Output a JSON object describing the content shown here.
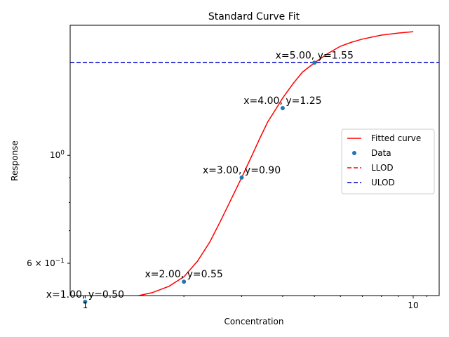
{
  "chart_data": {
    "type": "line",
    "title": "Standard Curve Fit",
    "xlabel": "Concentration",
    "ylabel": "Response",
    "xscale": "log",
    "yscale": "log",
    "xlim": [
      0.9,
      12
    ],
    "ylim": [
      0.515,
      1.85
    ],
    "x_ticks": [
      {
        "value": 1,
        "label": "1"
      },
      {
        "value": 10,
        "label": "10"
      }
    ],
    "y_ticks": [
      {
        "value": 1.0,
        "base": "10",
        "exp": "0"
      },
      {
        "value": 0.6,
        "base": "6 × 10",
        "exp": "−1"
      }
    ],
    "series": [
      {
        "name": "Fitted curve",
        "kind": "line",
        "color": "#ff0000",
        "x": [
          1.0,
          1.2,
          1.4,
          1.6,
          1.8,
          2.0,
          2.2,
          2.4,
          2.6,
          2.8,
          3.0,
          3.2,
          3.4,
          3.6,
          3.8,
          4.0,
          4.3,
          4.6,
          5.0,
          5.5,
          6.0,
          6.5,
          7.0,
          8.0,
          9.0,
          10.0
        ],
        "y": [
          0.501,
          0.505,
          0.512,
          0.522,
          0.538,
          0.563,
          0.606,
          0.664,
          0.738,
          0.818,
          0.9,
          0.988,
          1.08,
          1.17,
          1.24,
          1.311,
          1.403,
          1.483,
          1.549,
          1.62,
          1.675,
          1.708,
          1.733,
          1.766,
          1.783,
          1.795
        ]
      },
      {
        "name": "Data",
        "kind": "scatter",
        "color": "#1f77b4",
        "x": [
          1,
          2,
          3,
          4,
          5
        ],
        "y": [
          0.5,
          0.55,
          0.9,
          1.25,
          1.55
        ]
      },
      {
        "name": "LLOD",
        "kind": "hline",
        "color": "#ff0000",
        "y": 0.5
      },
      {
        "name": "ULOD",
        "kind": "hline",
        "color": "#0000cc",
        "y": 1.55
      }
    ],
    "annotations": [
      {
        "text": "x=1.00, y=0.50",
        "x": 1,
        "y": 0.5
      },
      {
        "text": "x=2.00, y=0.55",
        "x": 2,
        "y": 0.55
      },
      {
        "text": "x=3.00, y=0.90",
        "x": 3,
        "y": 0.9
      },
      {
        "text": "x=4.00, y=1.25",
        "x": 4,
        "y": 1.25
      },
      {
        "text": "x=5.00, y=1.55",
        "x": 5,
        "y": 1.55
      }
    ],
    "legend": {
      "position": "center-right",
      "entries": [
        "Fitted curve",
        "Data",
        "LLOD",
        "ULOD"
      ]
    }
  }
}
